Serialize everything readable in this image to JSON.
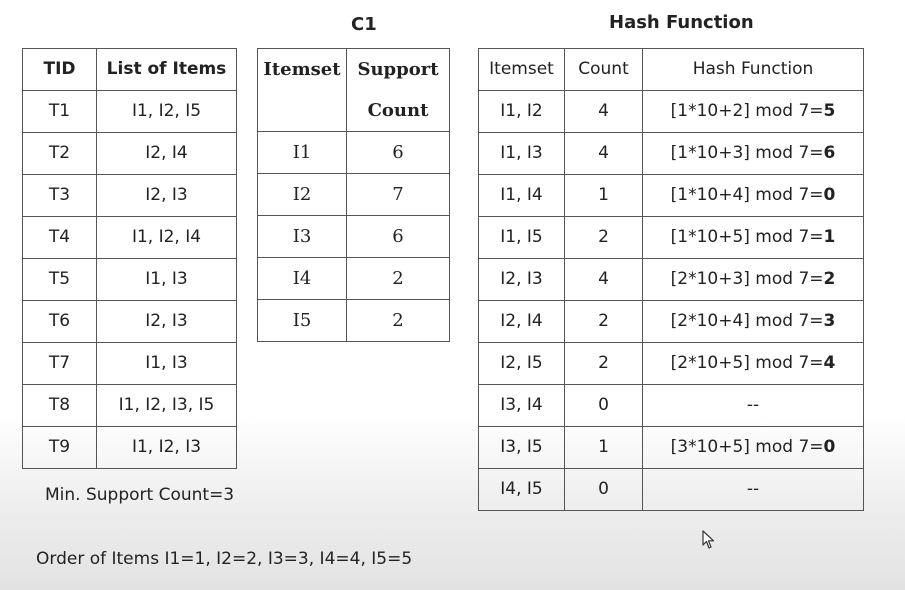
{
  "tid_table": {
    "headers": [
      "TID",
      "List of Items"
    ],
    "rows": [
      [
        "T1",
        "I1, I2, I5"
      ],
      [
        "T2",
        "I2, I4"
      ],
      [
        "T3",
        "I2, I3"
      ],
      [
        "T4",
        "I1, I2, I4"
      ],
      [
        "T5",
        "I1, I3"
      ],
      [
        "T6",
        "I2, I3"
      ],
      [
        "T7",
        "I1, I3"
      ],
      [
        "T8",
        "I1, I2, I3, I5"
      ],
      [
        "T9",
        "I1, I2, I3"
      ]
    ]
  },
  "c1_table": {
    "title": "C1",
    "headers": [
      "Itemset",
      "Support",
      "Count"
    ],
    "rows": [
      [
        "I1",
        "6"
      ],
      [
        "I2",
        "7"
      ],
      [
        "I3",
        "6"
      ],
      [
        "I4",
        "2"
      ],
      [
        "I5",
        "2"
      ]
    ]
  },
  "hash_table": {
    "title": "Hash Function",
    "headers": [
      "Itemset",
      "Count",
      "Hash Function"
    ],
    "rows": [
      {
        "itemset": "I1, I2",
        "count": "4",
        "expr": "[1*10+2] mod 7=",
        "bucket": "5"
      },
      {
        "itemset": "I1, I3",
        "count": "4",
        "expr": "[1*10+3] mod 7=",
        "bucket": "6"
      },
      {
        "itemset": "I1, I4",
        "count": "1",
        "expr": "[1*10+4] mod 7=",
        "bucket": "0"
      },
      {
        "itemset": "I1, I5",
        "count": "2",
        "expr": "[1*10+5] mod 7=",
        "bucket": "1"
      },
      {
        "itemset": "I2, I3",
        "count": "4",
        "expr": "[2*10+3] mod 7=",
        "bucket": "2"
      },
      {
        "itemset": "I2, I4",
        "count": "2",
        "expr": "[2*10+4] mod 7=",
        "bucket": "3"
      },
      {
        "itemset": "I2, I5",
        "count": "2",
        "expr": "[2*10+5] mod 7=",
        "bucket": "4"
      },
      {
        "itemset": "I3, I4",
        "count": "0",
        "expr": "--",
        "bucket": ""
      },
      {
        "itemset": "I3, I5",
        "count": "1",
        "expr": "[3*10+5] mod 7=",
        "bucket": "0"
      },
      {
        "itemset": "I4, I5",
        "count": "0",
        "expr": "--",
        "bucket": ""
      }
    ]
  },
  "notes": {
    "min_support": "Min. Support Count=3",
    "order_of_items": "Order of Items I1=1, I2=2, I3=3, I4=4, I5=5"
  },
  "icons": {
    "cursor": "mouse-pointer-icon"
  }
}
